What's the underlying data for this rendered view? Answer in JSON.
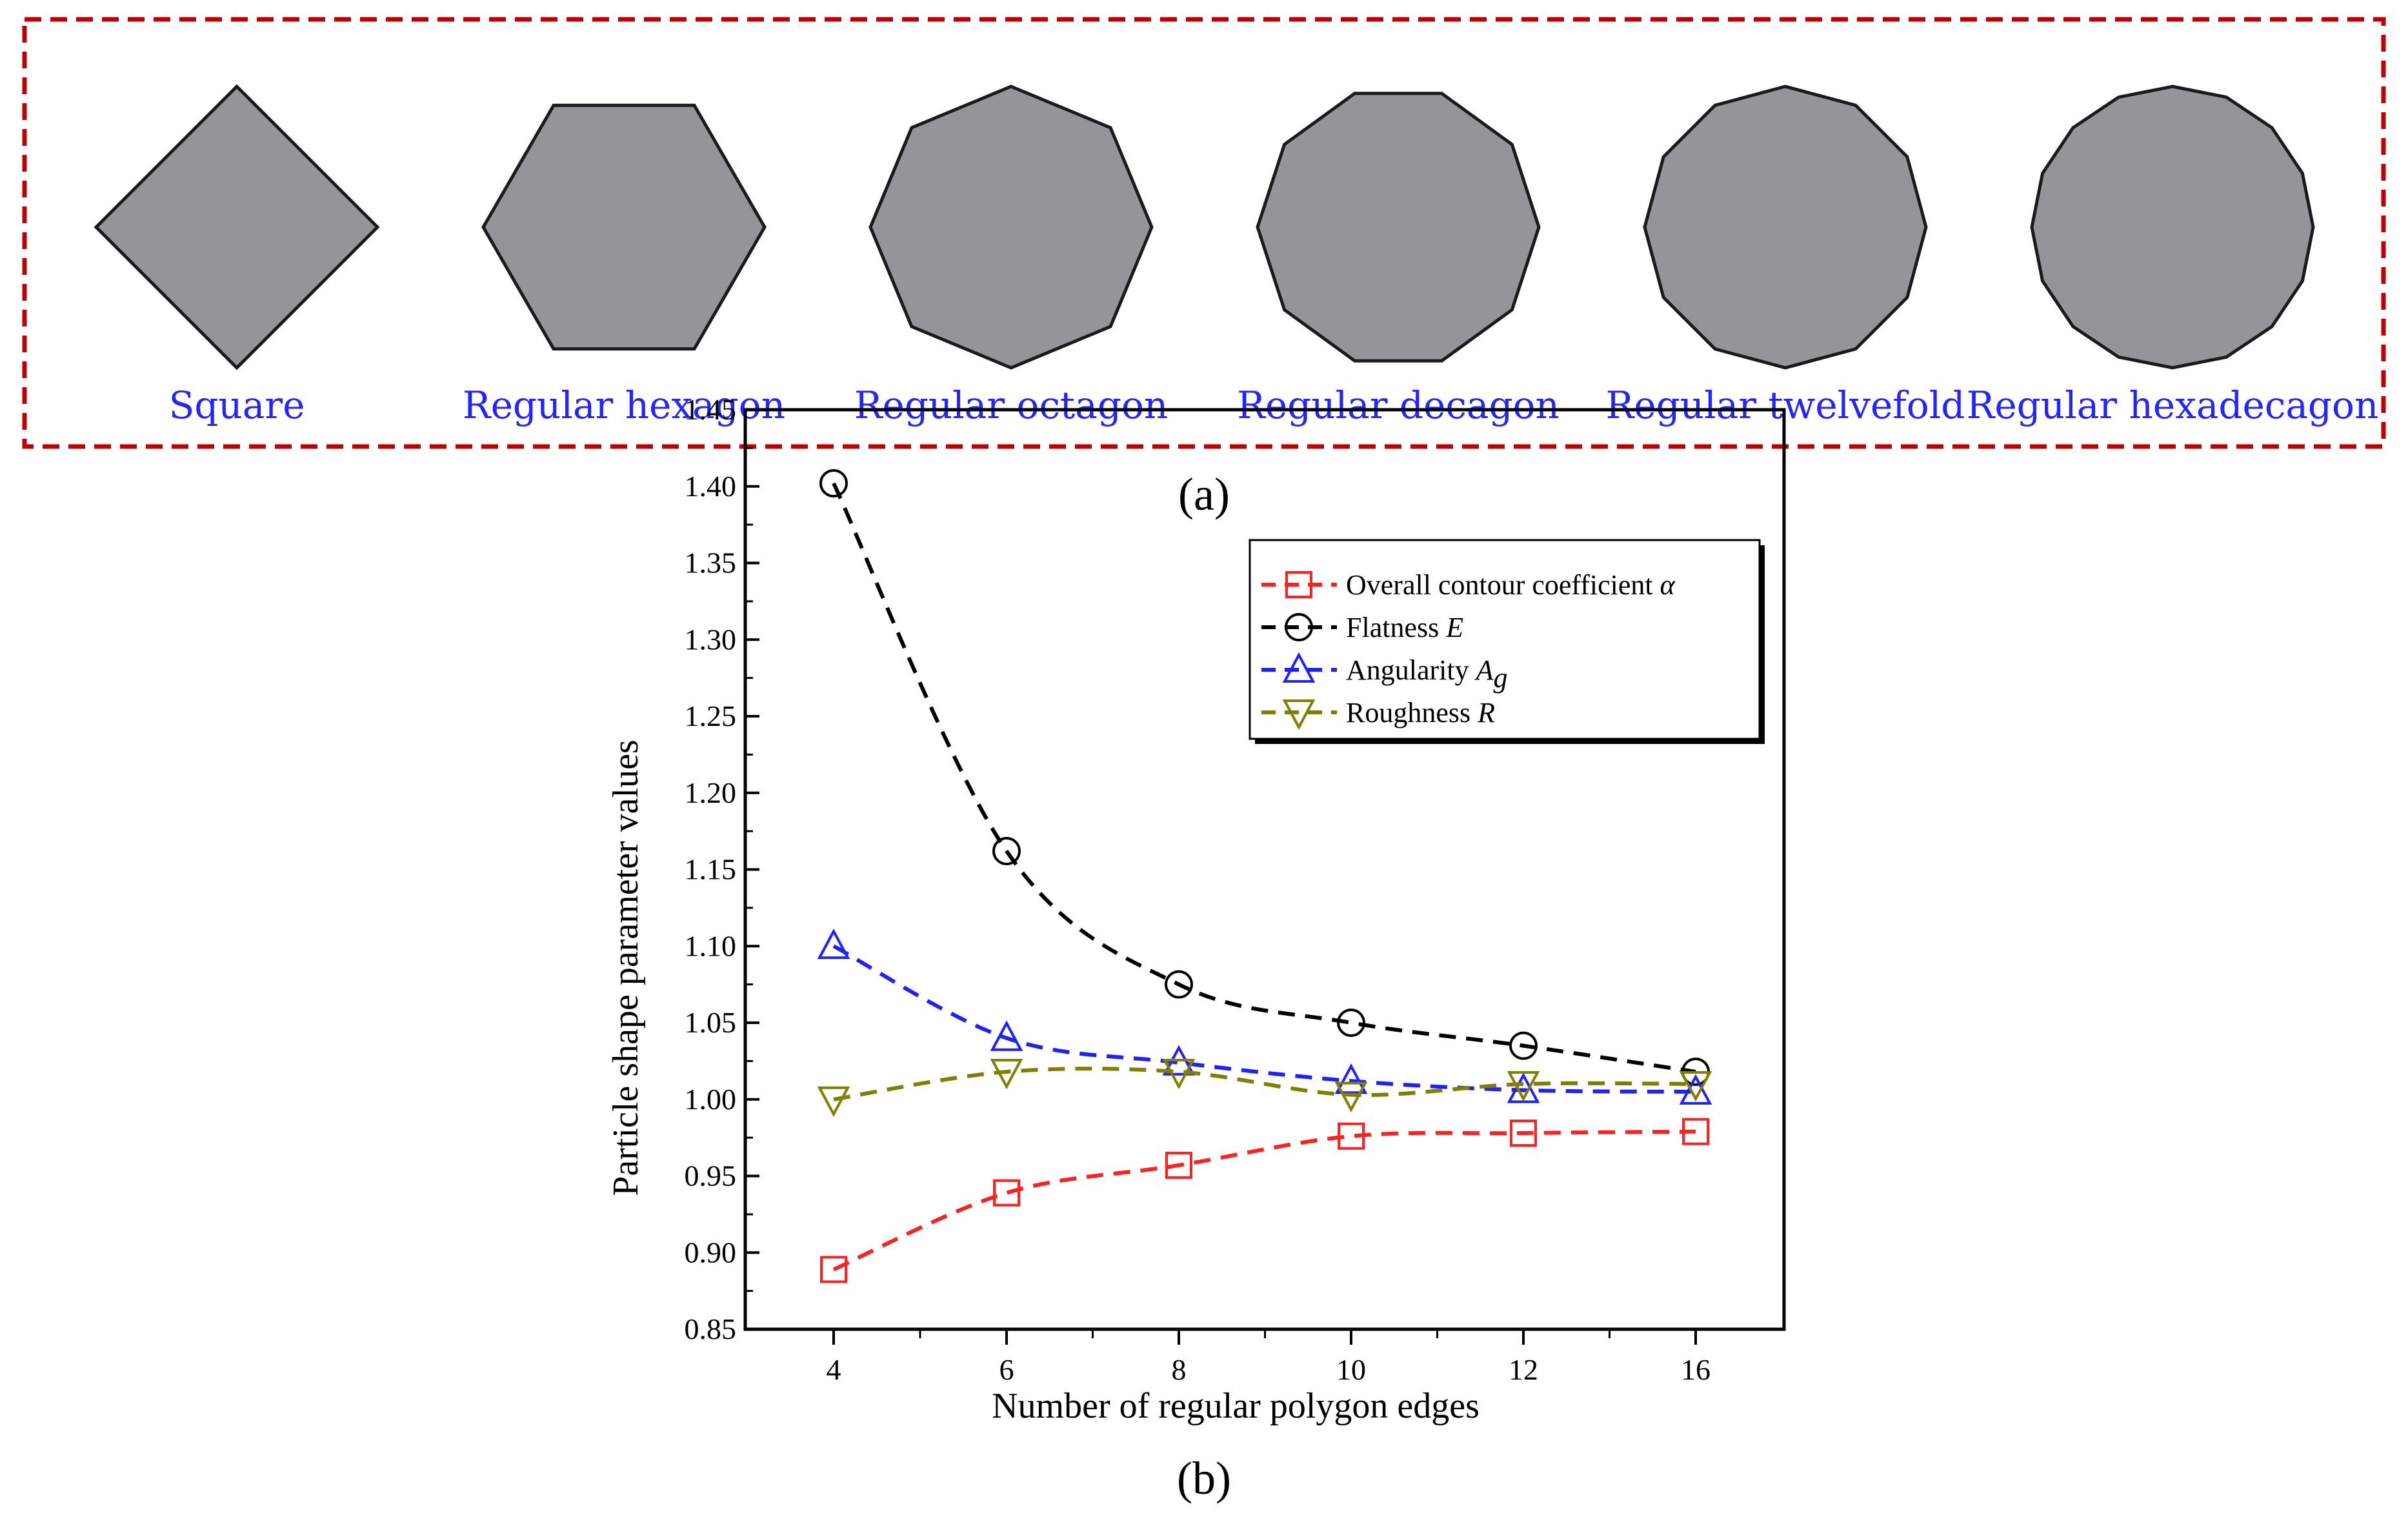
{
  "panel_a": {
    "label": "(a)",
    "shapes": [
      {
        "name": "Square",
        "edges": 4
      },
      {
        "name": "Regular hexagon",
        "edges": 6
      },
      {
        "name": "Regular octagon",
        "edges": 8
      },
      {
        "name": "Regular decagon",
        "edges": 10
      },
      {
        "name": "Regular twelvefold",
        "edges": 12
      },
      {
        "name": "Regular hexadecagon",
        "edges": 16
      }
    ],
    "colors": {
      "fill": "#939598",
      "stroke": "#1a1a1a",
      "label": "#2424ff",
      "border": "#c00000"
    }
  },
  "panel_b": {
    "label": "(b)"
  },
  "chart_data": {
    "type": "line",
    "title": "",
    "xlabel": "Number of regular polygon edges",
    "ylabel": "Particle shape parameter values",
    "categories": [
      "4",
      "6",
      "8",
      "10",
      "12",
      "16"
    ],
    "ylim": [
      0.85,
      1.45
    ],
    "yticks": [
      "0.85",
      "0.90",
      "0.95",
      "1.00",
      "1.05",
      "1.10",
      "1.15",
      "1.20",
      "1.25",
      "1.30",
      "1.35",
      "1.40",
      "1.45"
    ],
    "legend_position": "top-right",
    "series": [
      {
        "name": "Overall contour coefficient",
        "symbol": "α",
        "sub": "",
        "marker": "square",
        "color": "#ff2020",
        "values": [
          0.889,
          0.939,
          0.957,
          0.976,
          0.978,
          0.979
        ]
      },
      {
        "name": "Flatness",
        "symbol": "E",
        "sub": "",
        "marker": "circle",
        "color": "#000000",
        "values": [
          1.402,
          1.162,
          1.075,
          1.05,
          1.035,
          1.018
        ]
      },
      {
        "name": "Angularity",
        "symbol": "A",
        "sub": "g",
        "marker": "triangle-up",
        "color": "#1f1fff",
        "values": [
          1.1,
          1.04,
          1.024,
          1.012,
          1.006,
          1.005
        ]
      },
      {
        "name": "Roughness",
        "symbol": "R",
        "sub": "",
        "marker": "triangle-down",
        "color": "#808000",
        "values": [
          1.0,
          1.018,
          1.018,
          1.003,
          1.01,
          1.01
        ]
      }
    ]
  }
}
